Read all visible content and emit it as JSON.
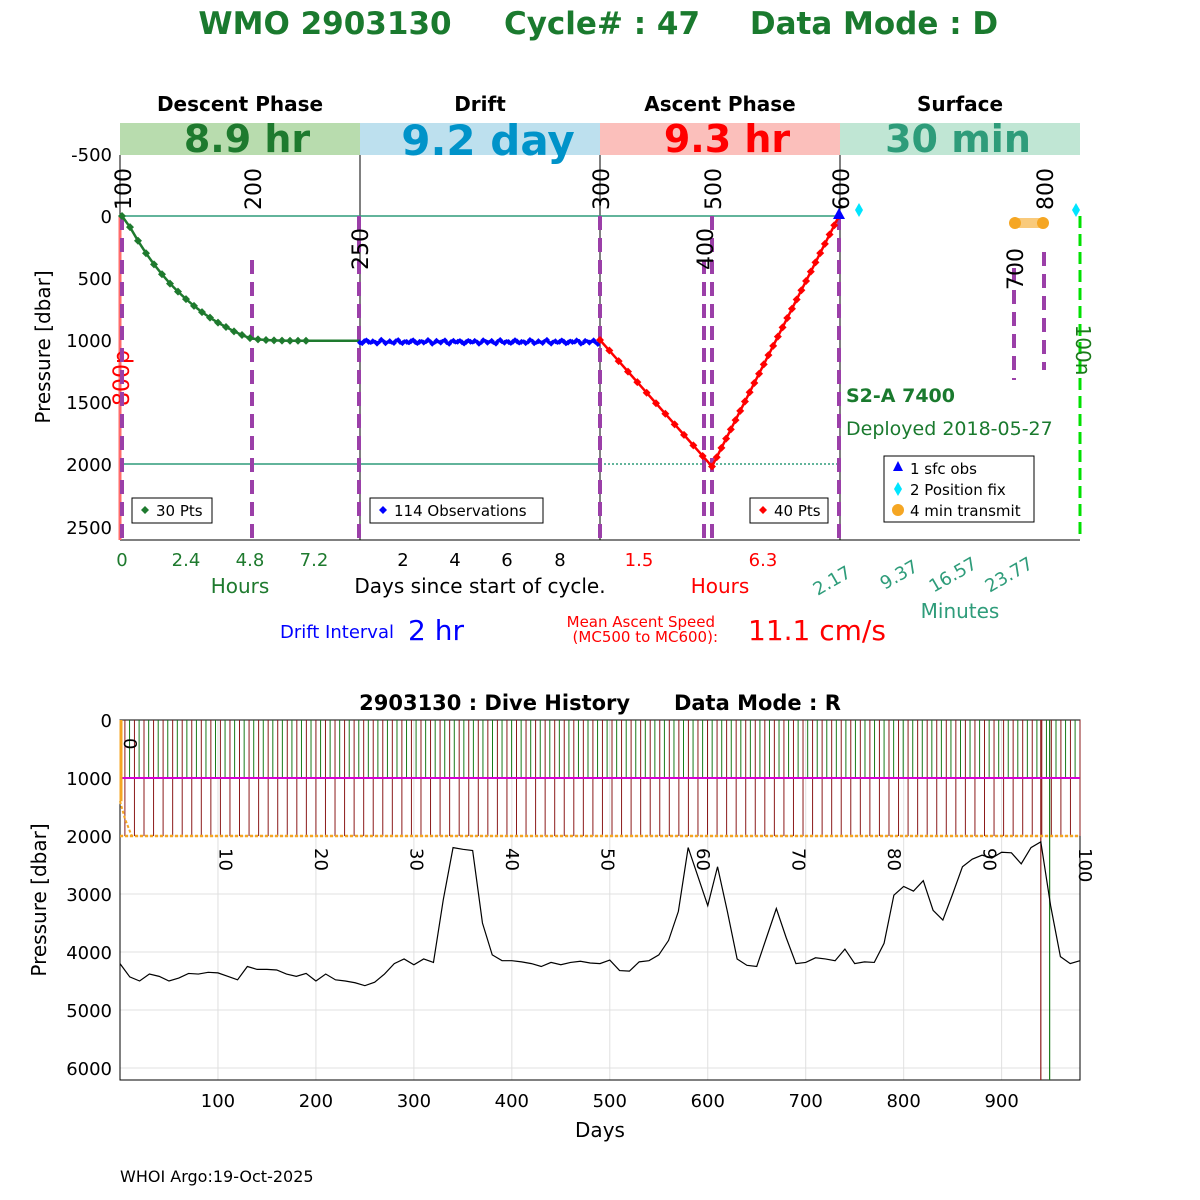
{
  "title": {
    "wmo": "WMO 2903130",
    "cycle": "Cycle# : 47",
    "mode": "Data Mode : D"
  },
  "colors": {
    "descent": "#1e7a2e",
    "drift": "#0000ff",
    "ascent": "#ff0000",
    "surface": "#2e9c7a",
    "mc": "#9b3fa8",
    "drift_color": "#0093c9",
    "orange": "#f5a623",
    "cyan": "#00e5ff",
    "magenta": "#d400d4",
    "dark_red": "#8b1a1a",
    "green_line": "#1a7a1a",
    "title": "#1a7a2e"
  },
  "phases": [
    {
      "name": "Descent Phase",
      "duration": "8.9 hr",
      "color": "#1e7a2e",
      "bg": "#b8dcae"
    },
    {
      "name": "Drift",
      "duration": "9.2 day",
      "color": "#0093c9",
      "bg": "#bde0ee"
    },
    {
      "name": "Ascent Phase",
      "duration": "9.3 hr",
      "color": "#ff0000",
      "bg": "#fbbfbb"
    },
    {
      "name": "Surface",
      "duration": "30 min",
      "color": "#2e9c7a",
      "bg": "#c0e6d4"
    }
  ],
  "top_panel": {
    "ylabel": "Pressure [dbar]",
    "y_ticks": [
      "-500",
      "0",
      "500",
      "1000",
      "1500",
      "2000",
      "2500"
    ],
    "descent_xticks": [
      "0",
      "2.4",
      "4.8",
      "7.2"
    ],
    "descent_xlabel": "Hours",
    "drift_xticks": [
      "2",
      "4",
      "6",
      "8"
    ],
    "drift_xlabel": "Days since start of cycle.",
    "ascent_xticks": [
      "1.5",
      "6.3"
    ],
    "ascent_xlabel": "Hours",
    "surface_xticks": [
      "2.17",
      "9.37",
      "16.57",
      "23.77"
    ],
    "surface_xlabel": "Minutes",
    "mc_labels": [
      "100",
      "200",
      "250",
      "300",
      "400",
      "500",
      "600",
      "700",
      "800"
    ],
    "side_label_800p": "800p",
    "side_label_100n": "100n",
    "descent_legend": "30 Pts",
    "drift_legend": "114 Observations",
    "ascent_legend": "40 Pts",
    "float_type": "S2-A 7400",
    "deployed": "Deployed 2018-05-27",
    "surface_legend": [
      "1 sfc obs",
      "2 Position fix",
      "4 min transmit"
    ],
    "drift_interval_label": "Drift Interval",
    "drift_interval_value": "2 hr",
    "ascent_speed_label_1": "Mean Ascent Speed",
    "ascent_speed_label_2": "(MC500 to MC600):",
    "ascent_speed_value": "11.1 cm/s"
  },
  "chart_data": [
    {
      "type": "line",
      "title": "",
      "panels": [
        "Descent Phase",
        "Drift",
        "Ascent Phase",
        "Surface"
      ],
      "descent": {
        "x_unit": "hours",
        "x": [
          0,
          0.3,
          0.6,
          0.9,
          1.2,
          1.5,
          1.8,
          2.1,
          2.4,
          2.7,
          3.0,
          3.3,
          3.6,
          3.9,
          4.2,
          4.5,
          4.8,
          5.1,
          5.4,
          5.7,
          6.0,
          6.3,
          6.6,
          6.9
        ],
        "pressure": [
          0,
          90,
          200,
          300,
          390,
          470,
          545,
          610,
          670,
          725,
          775,
          820,
          860,
          895,
          930,
          960,
          985,
          995,
          1000,
          1003,
          1005,
          1006,
          1006,
          1006
        ],
        "points": 30
      },
      "drift": {
        "x_unit": "days",
        "start": 0,
        "end": 9.2,
        "pressure_mean": 1015,
        "observations": 114
      },
      "ascent": {
        "x_unit": "hours",
        "x": [
          0,
          4.3,
          8.9
        ],
        "pressure": [
          1000,
          2020,
          0
        ],
        "points": 40
      },
      "surface": {
        "sfc_obs": 1,
        "position_fix": 2,
        "transmit_min": 4
      },
      "ylim": [
        -500,
        2600
      ]
    },
    {
      "type": "line",
      "title": "2903130 : Dive History      Data Mode : R",
      "xlabel": "Days",
      "ylabel": "Pressure [dbar]",
      "xlim": [
        0,
        980
      ],
      "ylim": [
        6200,
        0
      ],
      "x_ticks": [
        100,
        200,
        300,
        400,
        500,
        600,
        700,
        800,
        900
      ],
      "y_ticks": [
        0,
        1000,
        2000,
        3000,
        4000,
        5000,
        6000
      ],
      "cycle_labels": [
        "0",
        "10",
        "20",
        "30",
        "40",
        "50",
        "60",
        "70",
        "80",
        "90",
        "100"
      ],
      "series": [
        {
          "name": "",
          "x": [
            0,
            10,
            20,
            30,
            40,
            50,
            60,
            70,
            80,
            90,
            100,
            110,
            120,
            130,
            140,
            150,
            160,
            170,
            180,
            190,
            200,
            210,
            220,
            230,
            240,
            250,
            260,
            270,
            280,
            290,
            300,
            310,
            320,
            330,
            340,
            350,
            360,
            370,
            380,
            390,
            400,
            410,
            420,
            430,
            440,
            450,
            460,
            470,
            480,
            490,
            500,
            510,
            520,
            530,
            540,
            550,
            560,
            570,
            580,
            590,
            600,
            610,
            620,
            630,
            640,
            650,
            660,
            670,
            680,
            690,
            700,
            710,
            720,
            730,
            740,
            750,
            760,
            770,
            780,
            790,
            800,
            810,
            820,
            830,
            840,
            850,
            860,
            870,
            880,
            890,
            900,
            910,
            920,
            930,
            940,
            950,
            960,
            970,
            980
          ],
          "values": [
            4200,
            4430,
            4500,
            4380,
            4420,
            4500,
            4450,
            4370,
            4380,
            4350,
            4360,
            4420,
            4480,
            4250,
            4300,
            4300,
            4310,
            4380,
            4420,
            4370,
            4500,
            4380,
            4480,
            4500,
            4530,
            4580,
            4520,
            4380,
            4200,
            4120,
            4220,
            4120,
            4180,
            3100,
            2200,
            2230,
            2250,
            3500,
            4050,
            4150,
            4150,
            4170,
            4200,
            4250,
            4180,
            4220,
            4180,
            4160,
            4190,
            4200,
            4140,
            4320,
            4330,
            4170,
            4150,
            4050,
            3800,
            3300,
            2200,
            2700,
            3200,
            2530,
            3300,
            4120,
            4230,
            4250,
            3750,
            3250,
            3750,
            4200,
            4180,
            4100,
            4120,
            4150,
            3950,
            4200,
            4170,
            4180,
            3850,
            3020,
            2870,
            2950,
            2770,
            3280,
            3450,
            3000,
            2530,
            2400,
            2330,
            2380,
            2280,
            2290,
            2480,
            2200,
            2100,
            3200,
            4080,
            4200,
            4150
          ]
        }
      ],
      "drift_pressure": 1000,
      "profile_pressure": 2000
    }
  ],
  "footer": "WHOI Argo:19-Oct-2025"
}
